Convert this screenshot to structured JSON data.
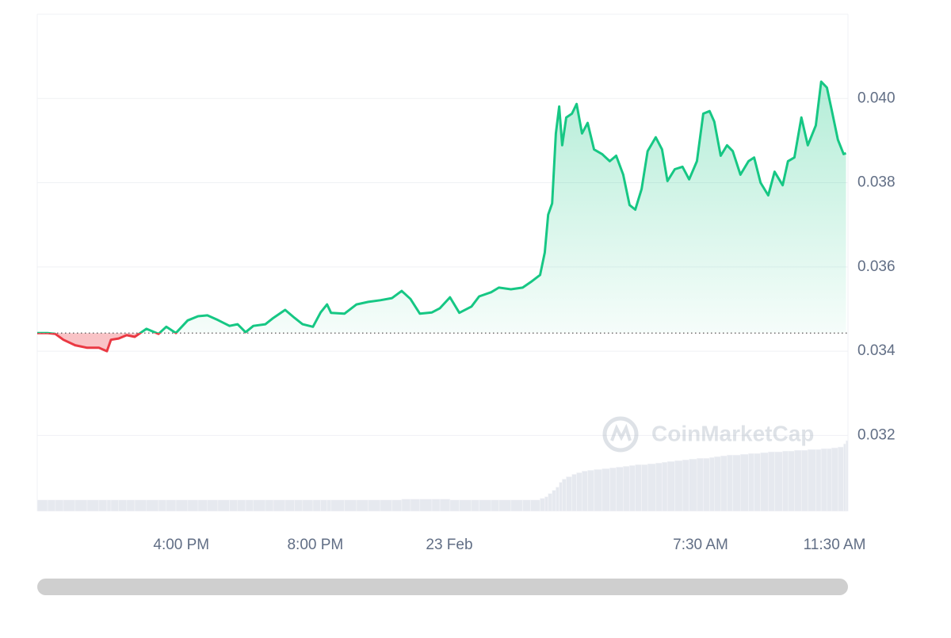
{
  "chart_data": {
    "type": "line",
    "watermark": "CoinMarketCap",
    "x": [
      11.7,
      12.01,
      12.24,
      12.48,
      12.83,
      13.19,
      13.54,
      13.78,
      13.9,
      14.13,
      14.37,
      14.61,
      14.96,
      15.32,
      15.55,
      15.84,
      16.19,
      16.5,
      16.78,
      17.09,
      17.44,
      17.68,
      17.92,
      18.15,
      18.51,
      18.75,
      19.1,
      19.38,
      19.62,
      19.93,
      20.16,
      20.35,
      20.47,
      20.87,
      21.23,
      21.58,
      21.94,
      22.29,
      22.58,
      22.84,
      23.12,
      23.48,
      23.72,
      24.02,
      24.3,
      24.66,
      24.89,
      25.25,
      25.48,
      25.84,
      26.19,
      26.43,
      26.71,
      26.85,
      26.95,
      27.07,
      27.18,
      27.28,
      27.37,
      27.49,
      27.66,
      27.8,
      27.96,
      28.13,
      28.32,
      28.56,
      28.79,
      28.98,
      29.19,
      29.38,
      29.55,
      29.74,
      29.92,
      30.16,
      30.35,
      30.51,
      30.73,
      30.96,
      31.16,
      31.39,
      31.58,
      31.77,
      31.91,
      32.1,
      32.29,
      32.46,
      32.69,
      32.93,
      33.1,
      33.29,
      33.52,
      33.71,
      33.95,
      34.11,
      34.3,
      34.51,
      34.7,
      34.94,
      35.1,
      35.27,
      35.41,
      35.6,
      35.77,
      35.84
    ],
    "values": [
      0.03443,
      0.03443,
      0.03441,
      0.03427,
      0.03414,
      0.03408,
      0.03408,
      0.034,
      0.03427,
      0.0343,
      0.03438,
      0.03434,
      0.03453,
      0.03441,
      0.03458,
      0.03443,
      0.03473,
      0.03483,
      0.03485,
      0.03474,
      0.0346,
      0.03464,
      0.03445,
      0.0346,
      0.03464,
      0.03479,
      0.03498,
      0.03479,
      0.03464,
      0.03458,
      0.03492,
      0.03511,
      0.03491,
      0.03489,
      0.03511,
      0.03517,
      0.03521,
      0.03526,
      0.03543,
      0.03524,
      0.03489,
      0.03492,
      0.03502,
      0.03528,
      0.03491,
      0.03506,
      0.0353,
      0.0354,
      0.03551,
      0.03547,
      0.03551,
      0.03564,
      0.03581,
      0.03634,
      0.03724,
      0.03751,
      0.03917,
      0.03981,
      0.03889,
      0.03955,
      0.03964,
      0.03987,
      0.03917,
      0.03942,
      0.03879,
      0.03868,
      0.03851,
      0.03864,
      0.03819,
      0.03747,
      0.03736,
      0.03785,
      0.03875,
      0.03908,
      0.03879,
      0.03804,
      0.03832,
      0.03838,
      0.03808,
      0.03851,
      0.03964,
      0.0397,
      0.03945,
      0.03864,
      0.03889,
      0.03875,
      0.03819,
      0.03851,
      0.0386,
      0.038,
      0.0377,
      0.03826,
      0.03794,
      0.03851,
      0.0386,
      0.03955,
      0.03889,
      0.03936,
      0.0404,
      0.04026,
      0.03974,
      0.03902,
      0.03868,
      0.0387
    ],
    "volume": [
      14,
      14,
      14,
      14,
      14,
      14,
      14,
      14,
      14,
      14,
      14,
      14,
      14,
      14,
      14,
      14,
      14,
      14,
      14,
      14,
      14,
      14,
      14,
      14,
      14,
      14,
      14,
      14,
      14,
      14,
      14,
      14,
      14,
      14,
      14,
      14,
      14,
      14,
      15,
      15,
      15,
      15,
      15,
      14,
      14,
      14,
      14,
      14,
      14,
      14,
      14,
      14,
      16,
      18,
      22,
      26,
      30,
      36,
      40,
      43,
      46,
      48,
      50,
      51,
      52,
      53,
      54,
      55,
      56,
      57,
      58,
      58,
      59,
      60,
      61,
      62,
      63,
      64,
      65,
      66,
      66,
      67,
      68,
      69,
      70,
      70,
      71,
      72,
      72,
      73,
      74,
      74,
      75,
      75,
      76,
      76,
      77,
      77,
      78,
      78,
      79,
      80,
      84,
      88
    ],
    "baseline": 0.03443,
    "up_color": "#16c784",
    "down_color": "#ea3943",
    "volume_color": "#e6e9ef",
    "xlim": [
      11.7,
      35.9
    ],
    "xticks": [
      {
        "value": 16,
        "label": "4:00 PM"
      },
      {
        "value": 20,
        "label": "8:00 PM"
      },
      {
        "value": 24,
        "label": "23 Feb"
      },
      {
        "value": 31.5,
        "label": "7:30 AM"
      },
      {
        "value": 35.5,
        "label": "11:30 AM"
      }
    ],
    "ylim": [
      0.0302,
      0.042
    ],
    "yticks": [
      0.032,
      0.034,
      0.036,
      0.038,
      {
        "value": 0.04,
        "label": "0.040"
      }
    ],
    "grid": true
  }
}
